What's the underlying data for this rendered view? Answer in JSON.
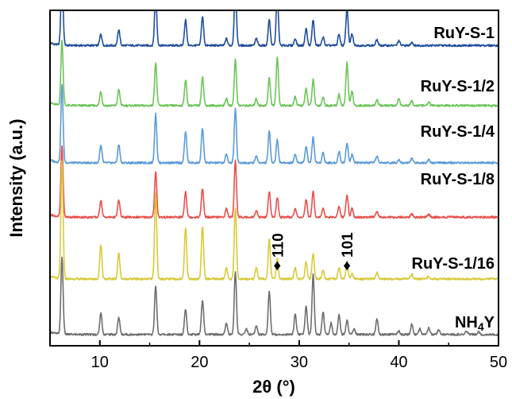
{
  "chart_data": {
    "type": "line",
    "xlabel": "2θ (°)",
    "ylabel": "Intensity (a.u.)",
    "xlim": [
      5,
      50
    ],
    "x_ticks": [
      10,
      20,
      30,
      40,
      50
    ],
    "x_tick_labels": [
      "10",
      "20",
      "30",
      "40",
      "50"
    ],
    "yticks_shown": false,
    "grid": false,
    "legend": "none",
    "series": [
      {
        "name": "RuY-S-1",
        "label_parts": [
          "RuY-S-1"
        ],
        "color": "#1f4e9c",
        "baseline": 5.05,
        "peaks": [
          [
            6.2,
            1.25
          ],
          [
            10.1,
            0.2
          ],
          [
            11.9,
            0.28
          ],
          [
            15.6,
            0.9
          ],
          [
            18.6,
            0.45
          ],
          [
            20.3,
            0.5
          ],
          [
            22.7,
            0.12
          ],
          [
            23.6,
            1.05
          ],
          [
            25.7,
            0.12
          ],
          [
            27.0,
            0.45
          ],
          [
            27.8,
            0.9
          ],
          [
            29.6,
            0.12
          ],
          [
            30.7,
            0.3
          ],
          [
            31.4,
            0.45
          ],
          [
            32.4,
            0.15
          ],
          [
            34.0,
            0.2
          ],
          [
            34.8,
            0.65
          ],
          [
            35.3,
            0.2
          ],
          [
            37.8,
            0.1
          ],
          [
            40.0,
            0.08
          ],
          [
            41.3,
            0.06
          ]
        ]
      },
      {
        "name": "RuY-S-1/2",
        "label_parts": [
          "RuY-S-1/2"
        ],
        "color": "#6cc55a",
        "baseline": 4.0,
        "peaks": [
          [
            6.2,
            1.15
          ],
          [
            10.1,
            0.25
          ],
          [
            11.9,
            0.28
          ],
          [
            15.6,
            0.75
          ],
          [
            18.6,
            0.45
          ],
          [
            20.3,
            0.5
          ],
          [
            22.7,
            0.12
          ],
          [
            23.6,
            0.8
          ],
          [
            25.7,
            0.12
          ],
          [
            27.0,
            0.5
          ],
          [
            27.8,
            0.85
          ],
          [
            29.6,
            0.15
          ],
          [
            30.7,
            0.3
          ],
          [
            31.4,
            0.45
          ],
          [
            32.4,
            0.15
          ],
          [
            34.0,
            0.2
          ],
          [
            34.8,
            0.75
          ],
          [
            35.3,
            0.25
          ],
          [
            37.8,
            0.1
          ],
          [
            40.0,
            0.12
          ],
          [
            41.3,
            0.08
          ],
          [
            43.0,
            0.06
          ]
        ]
      },
      {
        "name": "RuY-S-1/4",
        "label_parts": [
          "RuY-S-1/4"
        ],
        "color": "#5a9bd8",
        "baseline": 3.0,
        "peaks": [
          [
            6.2,
            1.35
          ],
          [
            10.1,
            0.3
          ],
          [
            11.9,
            0.32
          ],
          [
            15.6,
            0.85
          ],
          [
            18.6,
            0.55
          ],
          [
            20.3,
            0.6
          ],
          [
            22.7,
            0.15
          ],
          [
            23.6,
            0.95
          ],
          [
            25.7,
            0.12
          ],
          [
            27.0,
            0.55
          ],
          [
            27.8,
            0.4
          ],
          [
            29.6,
            0.15
          ],
          [
            30.7,
            0.3
          ],
          [
            31.4,
            0.45
          ],
          [
            32.4,
            0.18
          ],
          [
            34.0,
            0.2
          ],
          [
            34.8,
            0.35
          ],
          [
            35.3,
            0.15
          ],
          [
            37.8,
            0.12
          ],
          [
            40.0,
            0.06
          ],
          [
            41.3,
            0.08
          ],
          [
            43.0,
            0.06
          ]
        ]
      },
      {
        "name": "RuY-S-1/8",
        "label_parts": [
          "RuY-S-1/8"
        ],
        "color": "#e8504a",
        "baseline": 2.05,
        "peaks": [
          [
            6.2,
            1.25
          ],
          [
            10.1,
            0.3
          ],
          [
            11.9,
            0.3
          ],
          [
            15.6,
            0.8
          ],
          [
            18.6,
            0.45
          ],
          [
            20.3,
            0.5
          ],
          [
            22.7,
            0.15
          ],
          [
            23.6,
            1.0
          ],
          [
            25.7,
            0.12
          ],
          [
            27.0,
            0.45
          ],
          [
            27.8,
            0.35
          ],
          [
            29.6,
            0.15
          ],
          [
            30.7,
            0.3
          ],
          [
            31.4,
            0.45
          ],
          [
            32.4,
            0.15
          ],
          [
            34.0,
            0.2
          ],
          [
            34.8,
            0.4
          ],
          [
            35.3,
            0.15
          ],
          [
            37.8,
            0.1
          ],
          [
            41.3,
            0.06
          ],
          [
            43.0,
            0.05
          ]
        ]
      },
      {
        "name": "RuY-S-1/16",
        "label_parts": [
          "RuY-S-1/16"
        ],
        "color": "#d8c93a",
        "baseline": 0.97,
        "peaks": [
          [
            6.2,
            2.05
          ],
          [
            10.1,
            0.6
          ],
          [
            11.9,
            0.45
          ],
          [
            15.6,
            1.5
          ],
          [
            18.6,
            0.9
          ],
          [
            20.3,
            0.9
          ],
          [
            22.7,
            0.2
          ],
          [
            23.6,
            1.25
          ],
          [
            25.7,
            0.2
          ],
          [
            27.0,
            0.7
          ],
          [
            27.8,
            0.35
          ],
          [
            29.6,
            0.2
          ],
          [
            30.7,
            0.3
          ],
          [
            31.4,
            0.45
          ],
          [
            32.4,
            0.15
          ],
          [
            34.0,
            0.2
          ],
          [
            34.8,
            0.3
          ],
          [
            35.3,
            0.1
          ],
          [
            37.8,
            0.12
          ],
          [
            41.3,
            0.08
          ],
          [
            43.0,
            0.05
          ]
        ]
      },
      {
        "name": "NH4Y",
        "label_parts": [
          "NH",
          "4",
          "Y"
        ],
        "color": "#6e6e6e",
        "baseline": 0.0,
        "peaks": [
          [
            6.2,
            1.35
          ],
          [
            10.1,
            0.38
          ],
          [
            11.9,
            0.3
          ],
          [
            15.6,
            0.85
          ],
          [
            18.6,
            0.45
          ],
          [
            20.3,
            0.6
          ],
          [
            22.7,
            0.2
          ],
          [
            23.6,
            1.1
          ],
          [
            24.7,
            0.1
          ],
          [
            25.7,
            0.15
          ],
          [
            27.0,
            0.75
          ],
          [
            29.6,
            0.35
          ],
          [
            30.7,
            0.5
          ],
          [
            31.4,
            1.05
          ],
          [
            32.4,
            0.4
          ],
          [
            33.2,
            0.2
          ],
          [
            34.0,
            0.35
          ],
          [
            34.8,
            0.25
          ],
          [
            35.5,
            0.1
          ],
          [
            37.8,
            0.28
          ],
          [
            40.0,
            0.06
          ],
          [
            41.3,
            0.18
          ],
          [
            42.1,
            0.1
          ],
          [
            43.0,
            0.12
          ],
          [
            44.0,
            0.08
          ],
          [
            46.8,
            0.06
          ],
          [
            48.0,
            0.05
          ]
        ]
      }
    ],
    "annotations": [
      {
        "text": "110",
        "x": 27.8,
        "series": "RuY-S-1/16"
      },
      {
        "text": "101",
        "x": 34.8,
        "series": "RuY-S-1/16"
      }
    ],
    "annotation_marker": "♦"
  }
}
